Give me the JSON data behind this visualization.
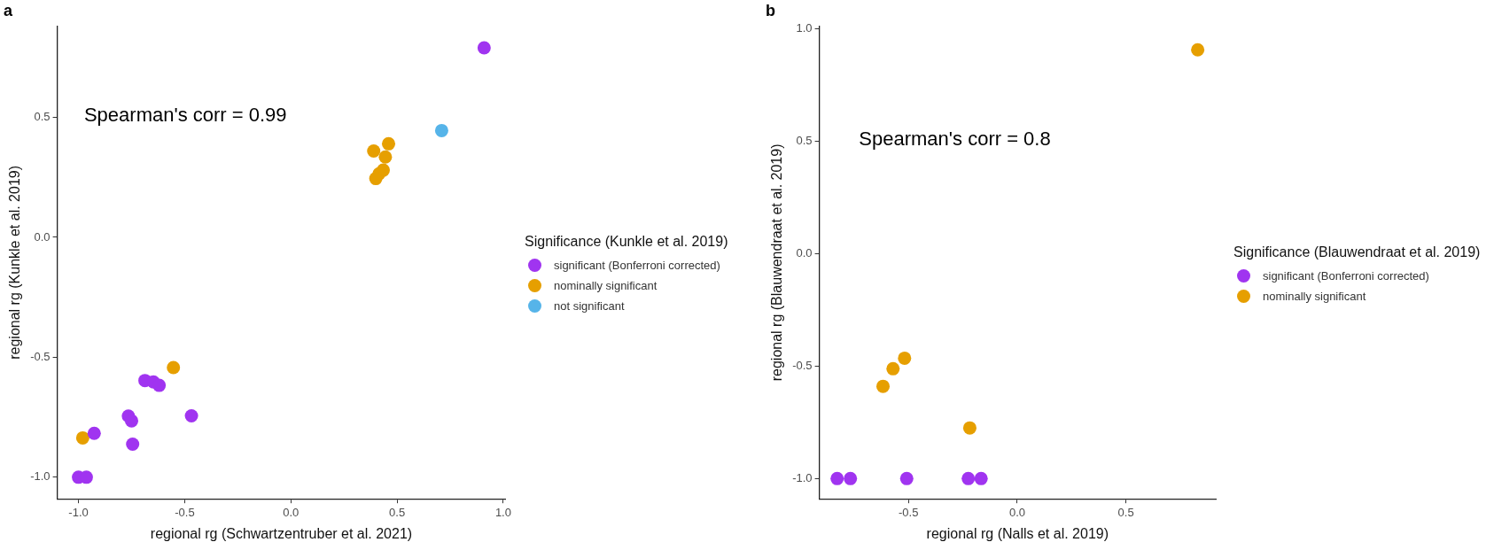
{
  "chart_data": [
    {
      "type": "scatter",
      "title": "a",
      "xlabel": "regional rg (Schwartzentruber et al. 2021)",
      "ylabel": "regional rg (Kunkle et al. 2019)",
      "legend_title": "Significance (Kunkle et al. 2019)",
      "legend": "right",
      "marker": "circle",
      "annotations": [
        "Spearman's corr = 0.99"
      ],
      "xlim": [
        -1.1,
        1.01
      ],
      "ylim": [
        -1.09,
        0.88
      ],
      "xticks": [
        {
          "value": -1,
          "label": "-1.0"
        },
        {
          "value": -0.5,
          "label": "-0.5"
        },
        {
          "value": 0,
          "label": "0.0"
        },
        {
          "value": 0.5,
          "label": "0.5"
        },
        {
          "value": 1,
          "label": "1.0"
        }
      ],
      "yticks": [
        {
          "value": -1,
          "label": "-1.0"
        },
        {
          "value": -0.5,
          "label": "-0.5"
        },
        {
          "value": 0,
          "label": "0.0"
        },
        {
          "value": 0.5,
          "label": "0.5"
        }
      ],
      "series": [
        {
          "name": "significant (Bonferroni corrected)",
          "color": "#a034f0",
          "x": [
            0.91,
            -0.926,
            -0.687,
            -0.647,
            -0.62,
            -0.765,
            -0.75,
            -0.745,
            -0.468,
            -1.0,
            -0.963
          ],
          "values": [
            0.79,
            -0.817,
            -0.597,
            -0.603,
            -0.617,
            -0.745,
            -0.765,
            -0.862,
            -0.744,
            -1.0,
            -1.0
          ]
        },
        {
          "name": "nominally significant",
          "color": "#e69f00",
          "x": [
            0.46,
            0.39,
            0.445,
            0.435,
            0.415,
            0.4,
            -0.553,
            -0.98
          ],
          "values": [
            0.39,
            0.36,
            0.335,
            0.28,
            0.265,
            0.245,
            -0.543,
            -0.836
          ]
        },
        {
          "name": "not significant",
          "color": "#56b4e9",
          "x": [
            0.71
          ],
          "values": [
            0.445
          ]
        }
      ]
    },
    {
      "type": "scatter",
      "title": "b",
      "xlabel": "regional rg (Nalls et al. 2019)",
      "ylabel": "regional rg (Blauwendraat et al. 2019)",
      "legend_title": "Significance (Blauwendraat et al. 2019)",
      "legend": "right",
      "marker": "circle",
      "annotations": [
        "Spearman's corr = 0.8"
      ],
      "xlim": [
        -0.91,
        0.913
      ],
      "ylim": [
        -1.09,
        1.01
      ],
      "xticks": [
        {
          "value": -0.5,
          "label": "-0.5"
        },
        {
          "value": 0,
          "label": "0.0"
        },
        {
          "value": 0.5,
          "label": "0.5"
        }
      ],
      "yticks": [
        {
          "value": -1,
          "label": "-1.0"
        },
        {
          "value": -0.5,
          "label": "-0.5"
        },
        {
          "value": 0,
          "label": "0.0"
        },
        {
          "value": 0.5,
          "label": "0.5"
        },
        {
          "value": 1,
          "label": "1.0"
        }
      ],
      "series": [
        {
          "name": "significant (Bonferroni corrected)",
          "color": "#a034f0",
          "x": [
            -0.828,
            -0.767,
            -0.508,
            -0.225,
            -0.166
          ],
          "values": [
            -1.0,
            -1.0,
            -1.0,
            -1.0,
            -1.0
          ]
        },
        {
          "name": "nominally significant",
          "color": "#e69f00",
          "x": [
            0.83,
            -0.617,
            -0.571,
            -0.518,
            -0.218
          ],
          "values": [
            0.905,
            -0.59,
            -0.512,
            -0.465,
            -0.775
          ]
        }
      ]
    }
  ]
}
